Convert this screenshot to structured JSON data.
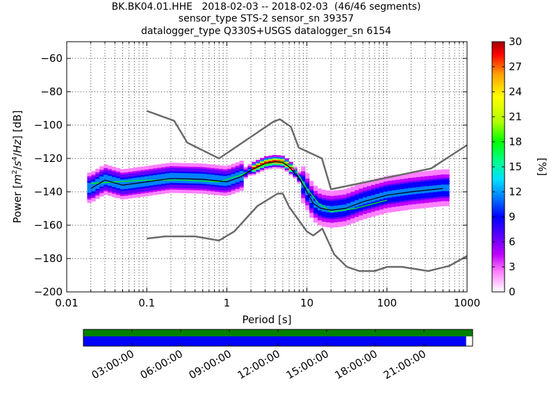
{
  "title_lines": [
    "BK.BK04.01.HHE   2018-02-03 -- 2018-02-03  (46/46 segments)",
    "sensor_type STS-2 sensor_sn 39357",
    "datalogger_type Q330S+USGS datalogger_sn 6154"
  ],
  "chart_data": {
    "type": "heatmap",
    "xlabel": "Period [s]",
    "ylabel": "Power [m²/s⁴/Hz] [dB]",
    "xscale": "log",
    "xlim": [
      0.01,
      1000
    ],
    "ylim": [
      -200,
      -50
    ],
    "xticks": [
      0.01,
      0.1,
      1,
      10,
      100,
      1000
    ],
    "xtick_labels": [
      "0.01",
      "0.1",
      "1",
      "10",
      "100",
      "1000"
    ],
    "yticks": [
      -200,
      -180,
      -160,
      -140,
      -120,
      -100,
      -80,
      -60
    ],
    "ytick_labels": [
      "−200",
      "−180",
      "−160",
      "−140",
      "−120",
      "−100",
      "−80",
      "−60"
    ],
    "grid": true,
    "colorbar": {
      "label": "[%]",
      "range": [
        0,
        30
      ],
      "ticks": [
        0,
        3,
        6,
        9,
        12,
        15,
        18,
        21,
        24,
        27,
        30
      ],
      "tick_labels": [
        "0",
        "3",
        "6",
        "9",
        "12",
        "15",
        "18",
        "21",
        "24",
        "27",
        "30"
      ],
      "colormap": [
        "#ffffff",
        "#ff80ff",
        "#c000ff",
        "#6000ff",
        "#0000ff",
        "#0080ff",
        "#00e0ff",
        "#00ff90",
        "#00ff00",
        "#b0ff00",
        "#ffff00",
        "#ffa000",
        "#ff0000",
        "#a00000"
      ]
    },
    "noise_models": [
      {
        "name": "NHNM",
        "color": "#696969",
        "period": [
          0.1,
          0.22,
          0.32,
          0.8,
          3.8,
          4.6,
          6.3,
          7.9,
          15.4,
          20,
          354.8,
          1000
        ],
        "db": [
          -91.5,
          -97.4,
          -110.5,
          -120,
          -98,
          -96.5,
          -101,
          -113.5,
          -120,
          -138.5,
          -126,
          -112
        ]
      },
      {
        "name": "NLNM",
        "color": "#696969",
        "period": [
          0.1,
          0.17,
          0.4,
          0.8,
          1.24,
          2.4,
          4.3,
          5,
          6,
          10,
          12,
          15.6,
          21.9,
          31.6,
          45,
          70,
          101,
          154,
          328,
          600,
          1000
        ],
        "db": [
          -168,
          -166.7,
          -166.7,
          -169.2,
          -163.7,
          -148.6,
          -141.1,
          -141.1,
          -149,
          -163.8,
          -166.2,
          -162.1,
          -177.5,
          -185,
          -187.5,
          -187.5,
          -185,
          -185,
          -187.5,
          -184.4,
          -178.5
        ]
      }
    ],
    "mean_curve": {
      "name": "mean",
      "color": "#000000",
      "period": [
        0.02,
        0.03,
        0.05,
        0.1,
        0.2,
        0.5,
        1,
        1.5,
        2,
        3,
        4,
        5,
        6,
        8,
        10,
        12,
        15,
        20,
        30,
        50,
        100,
        200,
        500
      ],
      "db": [
        -138,
        -133,
        -136,
        -134,
        -132,
        -132.5,
        -134,
        -131,
        -127,
        -123,
        -122,
        -122.5,
        -125,
        -132,
        -140,
        -147,
        -150,
        -151,
        -150,
        -146,
        -142,
        -140,
        -138
      ]
    },
    "mode_curve": {
      "name": "mode",
      "color": "#00ff00",
      "period": [
        0.02,
        0.04,
        0.1,
        0.3,
        0.8,
        1.5,
        2.5,
        4,
        5,
        7,
        10,
        14,
        20,
        40,
        100
      ],
      "db": [
        -135,
        -134,
        -133,
        -133,
        -134,
        -130,
        -125,
        -122,
        -122,
        -126,
        -138,
        -147,
        -152,
        -150,
        -145
      ]
    },
    "data_period_range": [
      0.018,
      600
    ],
    "data_db_range": [
      -175,
      -120
    ]
  },
  "time_axis": {
    "labels": [
      "03:00:00",
      "06:00:00",
      "09:00:00",
      "12:00:00",
      "15:00:00",
      "18:00:00",
      "21:00:00"
    ],
    "hours": [
      3,
      6,
      9,
      12,
      15,
      18,
      21
    ],
    "start_hour": 0,
    "end_hour": 24,
    "data_coverage": [
      0,
      23.6
    ],
    "coverage_color": "#0000ff",
    "availability_color": "#008000"
  }
}
